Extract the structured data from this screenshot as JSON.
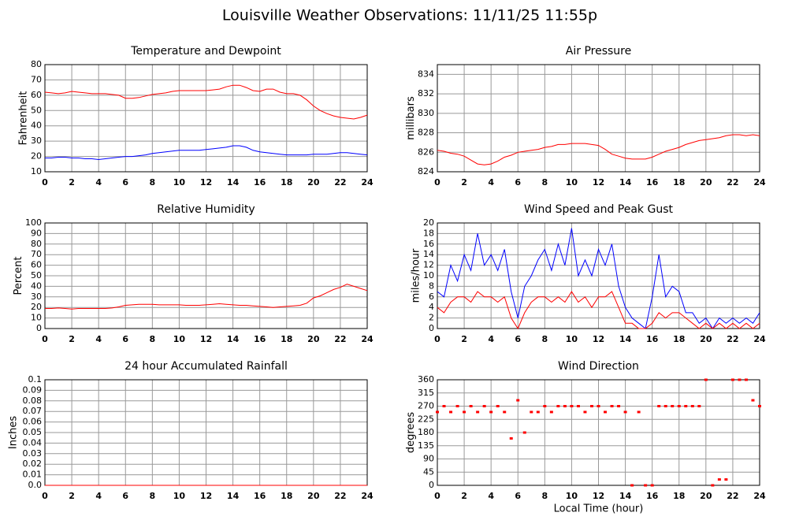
{
  "title": "Louisville Weather Observations: 11/11/25 11:55p",
  "chart_data": [
    {
      "type": "line",
      "title": "Temperature and Dewpoint",
      "ylabel": "Fahrenheit",
      "x": [
        0,
        0.5,
        1,
        1.5,
        2,
        2.5,
        3,
        3.5,
        4,
        4.5,
        5,
        5.5,
        6,
        6.5,
        7,
        7.5,
        8,
        8.5,
        9,
        9.5,
        10,
        10.5,
        11,
        11.5,
        12,
        12.5,
        13,
        13.5,
        14,
        14.5,
        15,
        15.5,
        16,
        16.5,
        17,
        17.5,
        18,
        18.5,
        19,
        19.5,
        20,
        20.5,
        21,
        21.5,
        22,
        22.5,
        23,
        23.5,
        24
      ],
      "series": [
        {
          "color": "#ff0000",
          "values": [
            62,
            61.5,
            61,
            61.5,
            62.5,
            62,
            61.5,
            61,
            61,
            61,
            60.5,
            60,
            58,
            58,
            58.5,
            59.5,
            60.5,
            61,
            61.5,
            62.5,
            63,
            63,
            63,
            63,
            63,
            63.5,
            64,
            65.5,
            66.5,
            66.5,
            65,
            63,
            62.5,
            64,
            64,
            62,
            61,
            61,
            60,
            57,
            53,
            50,
            48,
            46.5,
            45.5,
            45,
            44.5,
            45.5,
            47
          ]
        },
        {
          "color": "#0000ff",
          "values": [
            19,
            19,
            19.5,
            19.5,
            19,
            19,
            18.5,
            18.5,
            18,
            18.5,
            19,
            19.5,
            20,
            20,
            20.5,
            21,
            22,
            22.5,
            23,
            23.5,
            24,
            24,
            24,
            24,
            24.5,
            25,
            25.5,
            26,
            27,
            27,
            26,
            24,
            23,
            22.5,
            22,
            21.5,
            21,
            21,
            21,
            21,
            21.5,
            21.5,
            21.5,
            22,
            22.5,
            22.5,
            22,
            21.5,
            21
          ]
        }
      ],
      "xlim": [
        0,
        24
      ],
      "xticks": [
        0,
        2,
        4,
        6,
        8,
        10,
        12,
        14,
        16,
        18,
        20,
        22,
        24
      ],
      "ylim": [
        10,
        80
      ],
      "yticks": [
        10,
        20,
        30,
        40,
        50,
        60,
        70,
        80
      ],
      "grid": true
    },
    {
      "type": "line",
      "title": "Air Pressure",
      "ylabel": "millibars",
      "x": [
        0,
        0.5,
        1,
        1.5,
        2,
        2.5,
        3,
        3.5,
        4,
        4.5,
        5,
        5.5,
        6,
        6.5,
        7,
        7.5,
        8,
        8.5,
        9,
        9.5,
        10,
        10.5,
        11,
        11.5,
        12,
        12.5,
        13,
        13.5,
        14,
        14.5,
        15,
        15.5,
        16,
        16.5,
        17,
        17.5,
        18,
        18.5,
        19,
        19.5,
        20,
        20.5,
        21,
        21.5,
        22,
        22.5,
        23,
        23.5,
        24
      ],
      "series": [
        {
          "color": "#ff0000",
          "values": [
            826.2,
            826.1,
            825.9,
            825.8,
            825.6,
            825.2,
            824.8,
            824.7,
            824.8,
            825.1,
            825.5,
            825.7,
            826,
            826.1,
            826.2,
            826.3,
            826.5,
            826.6,
            826.8,
            826.8,
            826.9,
            826.9,
            826.9,
            826.8,
            826.7,
            826.3,
            825.8,
            825.6,
            825.4,
            825.3,
            825.3,
            825.3,
            825.5,
            825.8,
            826.1,
            826.3,
            826.5,
            826.8,
            827,
            827.2,
            827.3,
            827.4,
            827.5,
            827.7,
            827.8,
            827.8,
            827.7,
            827.8,
            827.7
          ]
        }
      ],
      "xlim": [
        0,
        24
      ],
      "xticks": [
        0,
        2,
        4,
        6,
        8,
        10,
        12,
        14,
        16,
        18,
        20,
        22,
        24
      ],
      "ylim": [
        824,
        835
      ],
      "yticks": [
        824,
        826,
        828,
        830,
        832,
        834
      ],
      "grid": true
    },
    {
      "type": "line",
      "title": "Relative Humidity",
      "ylabel": "Percent",
      "x": [
        0,
        0.5,
        1,
        1.5,
        2,
        2.5,
        3,
        3.5,
        4,
        4.5,
        5,
        5.5,
        6,
        6.5,
        7,
        7.5,
        8,
        8.5,
        9,
        9.5,
        10,
        10.5,
        11,
        11.5,
        12,
        12.5,
        13,
        13.5,
        14,
        14.5,
        15,
        15.5,
        16,
        16.5,
        17,
        17.5,
        18,
        18.5,
        19,
        19.5,
        20,
        20.5,
        21,
        21.5,
        22,
        22.5,
        23,
        23.5,
        24
      ],
      "series": [
        {
          "color": "#ff0000",
          "values": [
            19,
            19,
            19.5,
            19,
            18.5,
            19,
            19,
            19,
            19,
            19,
            19.5,
            20.5,
            22,
            22.5,
            23,
            23,
            23,
            22.5,
            22.5,
            22.5,
            22.5,
            22,
            22,
            22,
            22.5,
            23,
            23.5,
            23,
            22.5,
            22,
            22,
            21.5,
            21,
            20.5,
            20,
            20.5,
            21,
            21.5,
            22,
            24,
            29,
            31,
            34,
            37,
            39,
            42,
            40,
            38,
            36
          ]
        }
      ],
      "xlim": [
        0,
        24
      ],
      "xticks": [
        0,
        2,
        4,
        6,
        8,
        10,
        12,
        14,
        16,
        18,
        20,
        22,
        24
      ],
      "ylim": [
        0,
        100
      ],
      "yticks": [
        0,
        10,
        20,
        30,
        40,
        50,
        60,
        70,
        80,
        90,
        100
      ],
      "grid": true
    },
    {
      "type": "line",
      "title": "Wind Speed and Peak Gust",
      "ylabel": "miles/hour",
      "x": [
        0,
        0.5,
        1,
        1.5,
        2,
        2.5,
        3,
        3.5,
        4,
        4.5,
        5,
        5.5,
        6,
        6.5,
        7,
        7.5,
        8,
        8.5,
        9,
        9.5,
        10,
        10.5,
        11,
        11.5,
        12,
        12.5,
        13,
        13.5,
        14,
        14.5,
        15,
        15.5,
        16,
        16.5,
        17,
        17.5,
        18,
        18.5,
        19,
        19.5,
        20,
        20.5,
        21,
        21.5,
        22,
        22.5,
        23,
        23.5,
        24
      ],
      "series": [
        {
          "color": "#0000ff",
          "values": [
            7,
            6,
            12,
            9,
            14,
            11,
            18,
            12,
            14,
            11,
            15,
            7,
            2,
            8,
            10,
            13,
            15,
            11,
            16,
            12,
            19,
            10,
            13,
            10,
            15,
            12,
            16,
            8,
            4,
            2,
            1,
            0,
            6,
            14,
            6,
            8,
            7,
            3,
            3,
            1,
            2,
            0,
            2,
            1,
            2,
            1,
            2,
            1,
            3
          ]
        },
        {
          "color": "#ff0000",
          "values": [
            4,
            3,
            5,
            6,
            6,
            5,
            7,
            6,
            6,
            5,
            6,
            2,
            0,
            3,
            5,
            6,
            6,
            5,
            6,
            5,
            7,
            5,
            6,
            4,
            6,
            6,
            7,
            4,
            1,
            1,
            0,
            0,
            1,
            3,
            2,
            3,
            3,
            2,
            1,
            0,
            1,
            0,
            1,
            0,
            1,
            0,
            1,
            0,
            1
          ]
        }
      ],
      "xlim": [
        0,
        24
      ],
      "xticks": [
        0,
        2,
        4,
        6,
        8,
        10,
        12,
        14,
        16,
        18,
        20,
        22,
        24
      ],
      "ylim": [
        0,
        20
      ],
      "yticks": [
        0,
        2,
        4,
        6,
        8,
        10,
        12,
        14,
        16,
        18,
        20
      ],
      "grid": true
    },
    {
      "type": "line",
      "title": "24 hour Accumulated Rainfall",
      "ylabel": "Inches",
      "x": [
        0,
        0.5,
        1,
        1.5,
        2,
        2.5,
        3,
        3.5,
        4,
        4.5,
        5,
        5.5,
        6,
        6.5,
        7,
        7.5,
        8,
        8.5,
        9,
        9.5,
        10,
        10.5,
        11,
        11.5,
        12,
        12.5,
        13,
        13.5,
        14,
        14.5,
        15,
        15.5,
        16,
        16.5,
        17,
        17.5,
        18,
        18.5,
        19,
        19.5,
        20,
        20.5,
        21,
        21.5,
        22,
        22.5,
        23,
        23.5,
        24
      ],
      "series": [
        {
          "color": "#ff0000",
          "values": [
            0,
            0,
            0,
            0,
            0,
            0,
            0,
            0,
            0,
            0,
            0,
            0,
            0,
            0,
            0,
            0,
            0,
            0,
            0,
            0,
            0,
            0,
            0,
            0,
            0,
            0,
            0,
            0,
            0,
            0,
            0,
            0,
            0,
            0,
            0,
            0,
            0,
            0,
            0,
            0,
            0,
            0,
            0,
            0,
            0,
            0,
            0,
            0,
            0
          ]
        }
      ],
      "xlim": [
        0,
        24
      ],
      "xticks": [
        0,
        2,
        4,
        6,
        8,
        10,
        12,
        14,
        16,
        18,
        20,
        22,
        24
      ],
      "ylim": [
        0,
        0.1
      ],
      "yticks": [
        {
          "value": 0,
          "label": "0.0"
        },
        0.01,
        0.02,
        0.03,
        0.04,
        0.05,
        0.06,
        0.07,
        0.08,
        0.09,
        0.1
      ],
      "grid": true
    },
    {
      "type": "scatter",
      "title": "Wind Direction",
      "ylabel": "degrees",
      "xlabel": "Local Time (hour)",
      "x": [
        0,
        0.5,
        1,
        1.5,
        2,
        2.5,
        3,
        3.5,
        4,
        4.5,
        5,
        5.5,
        6,
        6.5,
        7,
        7.5,
        8,
        8.5,
        9,
        9.5,
        10,
        10.5,
        11,
        11.5,
        12,
        12.5,
        13,
        13.5,
        14,
        14.5,
        15,
        15.5,
        16,
        16.5,
        17,
        17.5,
        18,
        18.5,
        19,
        19.5,
        20,
        20.5,
        21,
        21.5,
        22,
        22.5,
        23,
        23.5,
        24
      ],
      "series": [
        {
          "color": "#ff0000",
          "values": [
            250,
            270,
            250,
            270,
            250,
            270,
            250,
            270,
            250,
            270,
            250,
            160,
            290,
            180,
            250,
            250,
            270,
            250,
            270,
            270,
            270,
            270,
            250,
            270,
            270,
            250,
            270,
            270,
            250,
            0,
            250,
            0,
            0,
            270,
            270,
            270,
            270,
            270,
            270,
            270,
            360,
            0,
            20,
            20,
            360,
            360,
            360,
            290,
            270
          ]
        }
      ],
      "xlim": [
        0,
        24
      ],
      "xticks": [
        0,
        2,
        4,
        6,
        8,
        10,
        12,
        14,
        16,
        18,
        20,
        22,
        24
      ],
      "ylim": [
        0,
        360
      ],
      "yticks": [
        0,
        45,
        90,
        135,
        180,
        225,
        270,
        315,
        360
      ],
      "grid": true
    }
  ]
}
